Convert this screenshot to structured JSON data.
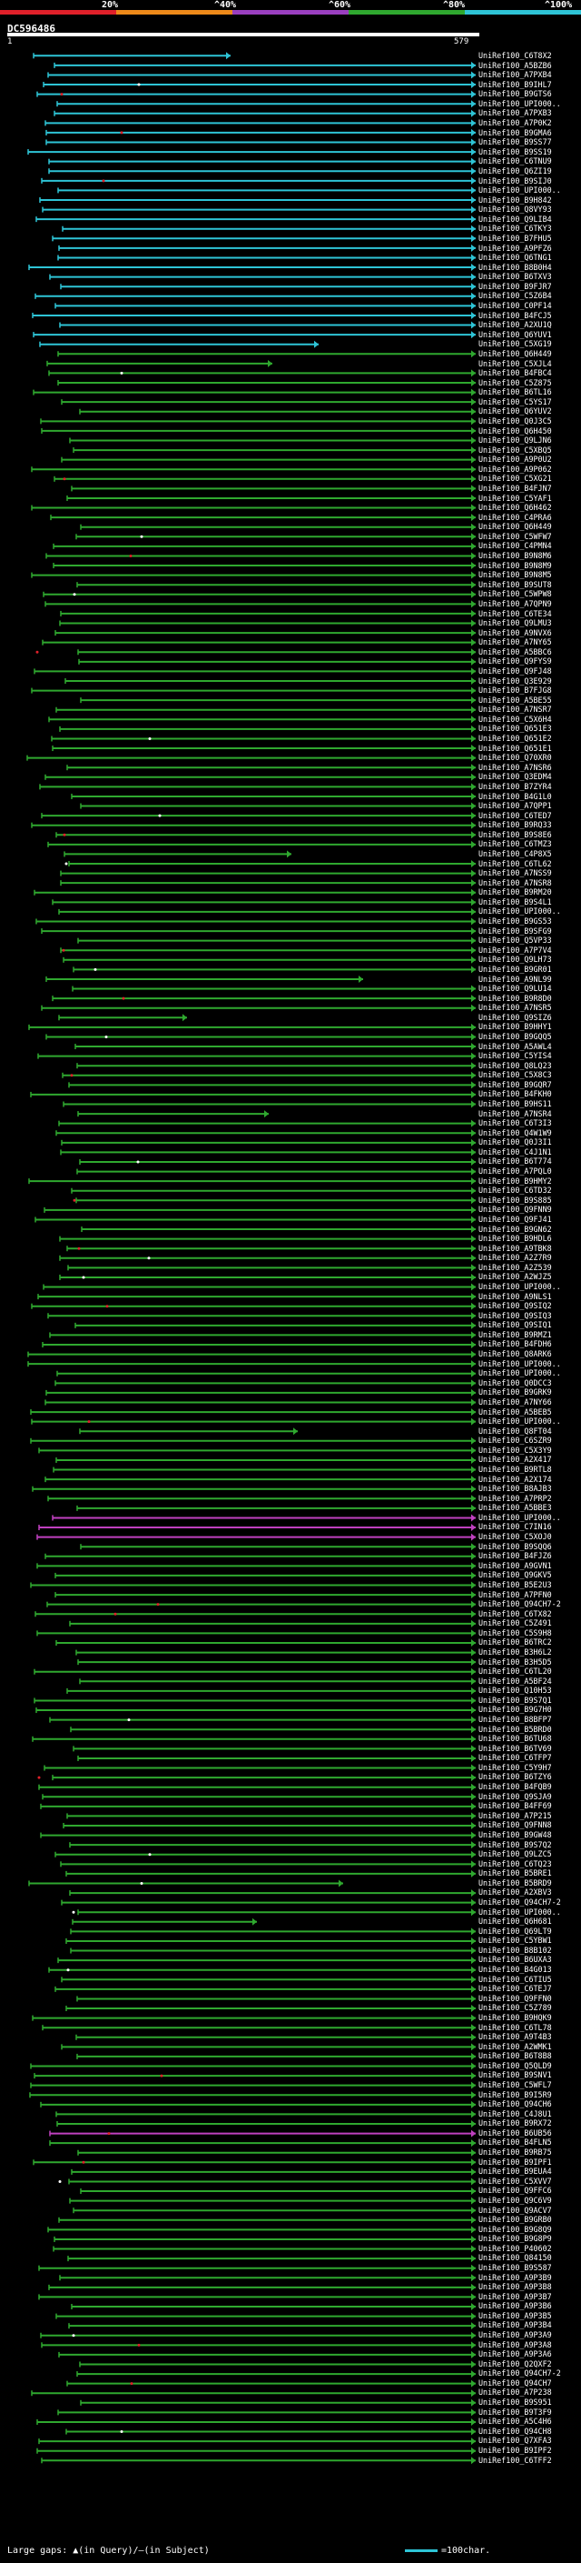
{
  "title": "DC596486",
  "ruler": {
    "start": "1",
    "end": "579"
  },
  "legend": {
    "labels": [
      "20%",
      "^40%",
      "^60%",
      "^80%",
      "^100%"
    ],
    "colors": [
      "#e0202a",
      "#ee8a1a",
      "#9a3fbf",
      "#2fa82f",
      "#2ec4d6"
    ]
  },
  "footer": {
    "gaps_text": "Large gaps: ▲(in Query)/—(in Subject)",
    "scale_text": "=100char."
  },
  "hits": [
    "UniRef100_C6T8X2",
    "UniRef100_A5BZB6",
    "UniRef100_A7PXB4",
    "UniRef100_B9IHL7",
    "UniRef100_B9GTS6",
    "UniRef100_UPI000..",
    "UniRef100_A7PXB3",
    "UniRef100_A7P0K2",
    "UniRef100_B9GMA6",
    "UniRef100_B9SS77",
    "UniRef100_B9SS19",
    "UniRef100_C6TNU9",
    "UniRef100_Q6ZI19",
    "UniRef100_B9SIJ0",
    "UniRef100_UPI000..",
    "UniRef100_B9H842",
    "UniRef100_Q8VY93",
    "UniRef100_Q9LIB4",
    "UniRef100_C6TKY3",
    "UniRef100_B7FHU5",
    "UniRef100_A9PFZ6",
    "UniRef100_Q6TNG1",
    "UniRef100_B8B0H4",
    "UniRef100_B6TXV3",
    "UniRef100_B9FJR7",
    "UniRef100_C5Z6B4",
    "UniRef100_C0PF14",
    "UniRef100_B4FCJ5",
    "UniRef100_A2XU1Q",
    "UniRef100_Q6YUV1",
    "UniRef100_C5XG19",
    "UniRef100_Q6H449",
    "UniRef100_C5XJL4",
    "UniRef100_B4FBC4",
    "UniRef100_C5Z875",
    "UniRef100_B6TL16",
    "UniRef100_C5YS17",
    "UniRef100_Q6YUV2",
    "UniRef100_Q0J3C5",
    "UniRef100_Q6H450",
    "UniRef100_Q9LJN6",
    "UniRef100_C5XBQ5",
    "UniRef100_A9P0U2",
    "UniRef100_A9P062",
    "UniRef100_C5XG21",
    "UniRef100_B4FJN7",
    "UniRef100_C5YAF1",
    "UniRef100_Q6H462",
    "UniRef100_C4PRA6",
    "UniRef100_Q6H449",
    "UniRef100_C5WFW7",
    "UniRef100_C4PMN4",
    "UniRef100_B9N8M6",
    "UniRef100_B9N8M9",
    "UniRef100_B9N8M5",
    "UniRef100_B9SUT8",
    "UniRef100_C5WPW8",
    "UniRef100_A7QPN9",
    "UniRef100_C6TE34",
    "UniRef100_Q9LMU3",
    "UniRef100_A9NVX6",
    "UniRef100_A7NY65",
    "UniRef100_A5BBC6",
    "UniRef100_Q9FYS9",
    "UniRef100_Q9FJ48",
    "UniRef100_Q3E929",
    "UniRef100_B7FJG8",
    "UniRef100_A5BE55",
    "UniRef100_A7NSR7",
    "UniRef100_C5X6H4",
    "UniRef100_Q651E3",
    "UniRef100_Q651E2",
    "UniRef100_Q651E1",
    "UniRef100_Q70XR0",
    "UniRef100_A7NSR6",
    "UniRef100_Q3EDM4",
    "UniRef100_B7ZYR4",
    "UniRef100_B4G1L0",
    "UniRef100_A7QPP1",
    "UniRef100_C6TED7",
    "UniRef100_B9RQ33",
    "UniRef100_B9S8E6",
    "UniRef100_C6TMZ3",
    "UniRef100_C4P8X5",
    "UniRef100_C6TL62",
    "UniRef100_A7NSS9",
    "UniRef100_A7NSR8",
    "UniRef100_B9RM20",
    "UniRef100_B9S4L1",
    "UniRef100_UPI000..",
    "UniRef100_B9GS53",
    "UniRef100_B9SFG9",
    "UniRef100_Q5VP33",
    "UniRef100_A7P7V4",
    "UniRef100_Q9LH73",
    "UniRef100_B9GR01",
    "UniRef100_A9NL99",
    "UniRef100_Q9LU14",
    "UniRef100_B9R8D0",
    "UniRef100_A7NSR5",
    "UniRef100_Q9SIZ6",
    "UniRef100_B9HHY1",
    "UniRef100_B9GQQ5",
    "UniRef100_A5AWL4",
    "UniRef100_C5YIS4",
    "UniRef100_Q8LQ23",
    "UniRef100_C5X8C3",
    "UniRef100_B9GQR7",
    "UniRef100_B4FKH0",
    "UniRef100_B9HS11",
    "UniRef100_A7NSR4",
    "UniRef100_C6T3I3",
    "UniRef100_Q4W1W9",
    "UniRef100_Q0J3I1",
    "UniRef100_C4J1N1",
    "UniRef100_B6T774",
    "UniRef100_A7PQL0",
    "UniRef100_B9HMY2",
    "UniRef100_C6TD32",
    "UniRef100_B9S885",
    "UniRef100_Q9FNN9",
    "UniRef100_Q9FJ41",
    "UniRef100_B9GN62",
    "UniRef100_B9HDL6",
    "UniRef100_A9TBK8",
    "UniRef100_A2Z7R9",
    "UniRef100_A2Z539",
    "UniRef100_A2WJZ5",
    "UniRef100_UPI000..",
    "UniRef100_A9NLS1",
    "UniRef100_Q9SIQ2",
    "UniRef100_Q9SIQ3",
    "UniRef100_Q9SIQ1",
    "UniRef100_B9RMZ1",
    "UniRef100_B4FDH6",
    "UniRef100_Q8ARK6",
    "UniRef100_UPI000..",
    "UniRef100_UPI000..",
    "UniRef100_Q0DCC3",
    "UniRef100_B9GRK9",
    "UniRef100_A7NY66",
    "UniRef100_A5BEB5",
    "UniRef100_UPI000..",
    "UniRef100_Q8FT04",
    "UniRef100_C6SZR9",
    "UniRef100_C5X3Y9",
    "UniRef100_A2X417",
    "UniRef100_B9RTL8",
    "UniRef100_A2X174",
    "UniRef100_B8AJB3",
    "UniRef100_A7PRP2",
    "UniRef100_A5BBE3",
    "UniRef100_UPI000..",
    "UniRef100_C7IN16",
    "UniRef100_C5XOJ0",
    "UniRef100_B9SQQ6",
    "UniRef100_B4FJZ6",
    "UniRef100_A9GVN1",
    "UniRef100_Q9GKV5",
    "UniRef100_B5E2U3",
    "UniRef100_A7PFN0",
    "UniRef100_Q94CH7-2",
    "UniRef100_C6TX82",
    "UniRef100_C5Z491",
    "UniRef100_C5S9H8",
    "UniRef100_B6TRC2",
    "UniRef100_B3H6L2",
    "UniRef100_B3H5D5",
    "UniRef100_C6TL20",
    "UniRef100_A5BF24",
    "UniRef100_Q10H53",
    "UniRef100_B9S7Q1",
    "UniRef100_B9G7H0",
    "UniRef100_B8BFP7",
    "UniRef100_B5BRD0",
    "UniRef100_B6TU68",
    "UniRef100_B6TV69",
    "UniRef100_C6TFP7",
    "UniRef100_C5Y9H7",
    "UniRef100_B6TZY6",
    "UniRef100_B4FQB9",
    "UniRef100_Q9SJA9",
    "UniRef100_B4FF69",
    "UniRef100_A7P215",
    "UniRef100_Q9FNN8",
    "UniRef100_B9GW48",
    "UniRef100_B9S7Q2",
    "UniRef100_Q9LZC5",
    "UniRef100_C6TQ23",
    "UniRef100_B5BRE1",
    "UniRef100_B5BRD9",
    "UniRef100_A2XBV3",
    "UniRef100_Q94CH7-2",
    "UniRef100_UPI000..",
    "UniRef100_Q6H681",
    "UniRef100_Q69LT9",
    "UniRef100_C5YBW1",
    "UniRef100_B8B102",
    "UniRef100_B6UXA3",
    "UniRef100_B4G013",
    "UniRef100_C6TIU5",
    "UniRef100_C6TEJ7",
    "UniRef100_Q9FFN0",
    "UniRef100_C5Z789",
    "UniRef100_B9HQK9",
    "UniRef100_C6TL78",
    "UniRef100_A9T4B3",
    "UniRef100_A2WMK1",
    "UniRef100_B6T8B8",
    "UniRef100_Q5QLD9",
    "UniRef100_B9SNV1",
    "UniRef100_C5WFL7",
    "UniRef100_B9I5R9",
    "UniRef100_Q94CH6",
    "UniRef100_C4J8U1",
    "UniRef100_B9RX72",
    "UniRef100_B6UB56",
    "UniRef100_B4FLN5",
    "UniRef100_B9RB75",
    "UniRef100_B9IPF1",
    "UniRef100_B9EUA4",
    "UniRef100_C5XVV7",
    "UniRef100_Q9FFC6",
    "UniRef100_Q9C6V9",
    "UniRef100_Q9ACV7",
    "UniRef100_B9GRB0",
    "UniRef100_B9G8Q9",
    "UniRef100_B9G8P9",
    "UniRef100_P40602",
    "UniRef100_Q84150",
    "UniRef100_B9S587",
    "UniRef100_A9P3B9",
    "UniRef100_A9P3B8",
    "UniRef100_A9P3B7",
    "UniRef100_A9P3B6",
    "UniRef100_A9P3B5",
    "UniRef100_A9P3B4",
    "UniRef100_A9P3A9",
    "UniRef100_A9P3A8",
    "UniRef100_A9P3A6",
    "UniRef100_Q2QXF2",
    "UniRef100_Q94CH7-2",
    "UniRef100_Q94CH7",
    "UniRef100_A7P238",
    "UniRef100_B9S951",
    "UniRef100_B9T3F9",
    "UniRef100_A5C4H6",
    "UniRef100_Q94CH8",
    "UniRef100_Q7XFA3",
    "UniRef100_B9IPF2",
    "UniRef100_C6TFF2"
  ]
}
